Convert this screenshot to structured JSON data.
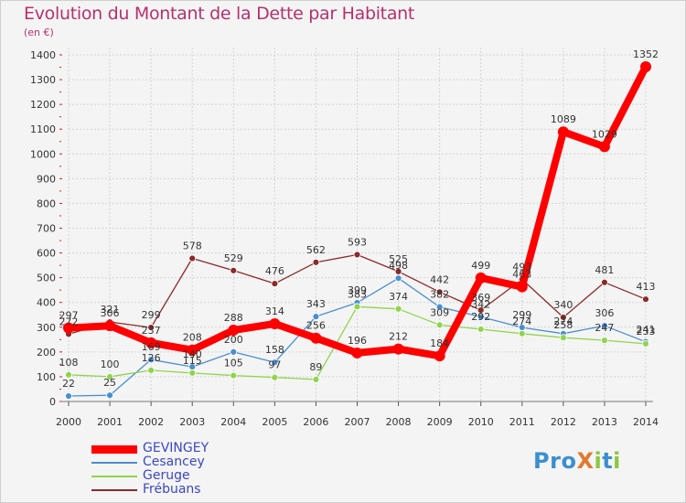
{
  "header": {
    "title": "Evolution du Montant de la Dette par Habitant",
    "subtitle": "(en €)"
  },
  "logo": {
    "text": "ProXiti",
    "colors": [
      "#3b8fd0",
      "#8cc63e",
      "#e07a2f"
    ]
  },
  "chart_data": {
    "type": "line",
    "title": "Evolution du Montant de la Dette par Habitant",
    "subtitle": "(en €)",
    "xlabel": "",
    "ylabel": "",
    "x": [
      "2000",
      "2001",
      "2002",
      "2003",
      "2004",
      "2005",
      "2006",
      "2007",
      "2008",
      "2009",
      "2010",
      "2011",
      "2012",
      "2013",
      "2014"
    ],
    "ylim": [
      0,
      1400
    ],
    "yticks": [
      0,
      100,
      200,
      300,
      400,
      500,
      600,
      700,
      800,
      900,
      1000,
      1100,
      1200,
      1300,
      1400
    ],
    "grid": true,
    "legend": "bottom-left",
    "series": [
      {
        "name": "GEVINGEY",
        "color": "#ff0000",
        "emphasis": true,
        "values": [
          297,
          306,
          237,
          208,
          288,
          314,
          256,
          196,
          212,
          184,
          499,
          463,
          1089,
          1029,
          1352
        ],
        "labels": [
          "297",
          "306",
          "237",
          "208",
          "288",
          "314",
          "256",
          "196",
          "212",
          "184",
          "499",
          "463",
          "1089",
          "1029",
          "1352"
        ]
      },
      {
        "name": "Cesancey",
        "color": "#4a8ed0",
        "values": [
          22,
          25,
          169,
          140,
          200,
          158,
          343,
          399,
          498,
          382,
          342,
          299,
          274,
          306,
          241
        ],
        "labels": [
          "22",
          "25",
          "169",
          "140",
          "200",
          "158",
          "343",
          "399",
          "498",
          "382",
          "342",
          "299",
          "274",
          "306",
          "241"
        ]
      },
      {
        "name": "Geruge",
        "color": "#8fd44c",
        "values": [
          108,
          100,
          126,
          115,
          105,
          97,
          89,
          383,
          374,
          309,
          292,
          274,
          258,
          247,
          233
        ],
        "labels": [
          "108",
          "100",
          "126",
          "115",
          "105",
          "97",
          "89",
          "383",
          "374",
          "309",
          "292",
          "274",
          "258",
          "247",
          "233"
        ]
      },
      {
        "name": "Frébuans",
        "color": "#8a2a2a",
        "values": [
          272,
          321,
          299,
          578,
          529,
          476,
          562,
          593,
          525,
          442,
          369,
          493,
          340,
          481,
          413
        ],
        "labels": [
          "272",
          "321",
          "299",
          "578",
          "529",
          "476",
          "562",
          "593",
          "525",
          "442",
          "369",
          "493",
          "340",
          "481",
          "413"
        ]
      }
    ]
  }
}
